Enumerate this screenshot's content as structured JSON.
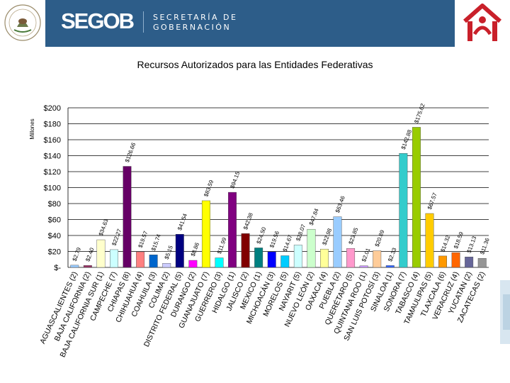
{
  "header": {
    "brand": "SEGOB",
    "line1": "SECRETARÍA DE",
    "line2": "GOBERNACIÓN",
    "colors": {
      "bar": "#2d5d89",
      "logo_red": "#c9202a"
    }
  },
  "chart_data": {
    "type": "bar",
    "title": "Recursos Autorizados para las Entidades Federativas",
    "ylabel": "Millones",
    "xlabel": "",
    "ylim": [
      0,
      200
    ],
    "yticks": [
      "$-",
      "$20",
      "$40",
      "$60",
      "$80",
      "$100",
      "$120",
      "$140",
      "$160",
      "$180",
      "$200"
    ],
    "grid": true,
    "categories": [
      "AGUASCALIENTES (2)",
      "BAJA CALIFORNIA (2)",
      "BAJA CALIFORNIA SUR (1)",
      "CAMPECHE (7)",
      "CHIAPAS (8)",
      "CHIHUAHUA (4)",
      "COAHUILA (3)",
      "COLIMA (2)",
      "DISTRITO FEDERAL (5)",
      "DURANGO (2)",
      "GUANAJUATO (7)",
      "GUERRERO (3)",
      "HIDALGO (1)",
      "JALISCO (2)",
      "MEXICO (1)",
      "MICHOACÁN (3)",
      "MORELOS (5)",
      "NAYARIT (5)",
      "NUEVO LEÓN (2)",
      "OAXACA (4)",
      "PUEBLA (2)",
      "QUERÉTARO (5)",
      "QUINTANA ROO (1)",
      "SAN LUIS POTOSÍ (3)",
      "SINALOA (1)",
      "SONORA (7)",
      "TABASCO (4)",
      "TAMAULIPAS (5)",
      "TLAXCALA (6)",
      "VERACRUZ (4)",
      "YUCATAN (2)",
      "ZACATECAS (2)"
    ],
    "values": [
      2.79,
      2.4,
      34.63,
      22.27,
      126.66,
      19.57,
      15.74,
      5.15,
      41.54,
      8.86,
      83.59,
      11.99,
      94.15,
      42.38,
      24.5,
      19.56,
      14.67,
      28.07,
      47.84,
      22.98,
      63.46,
      23.85,
      2.01,
      20.89,
      2.33,
      142.88,
      175.62,
      67.57,
      14.32,
      18.59,
      13.13,
      11.36
    ],
    "data_labels": [
      "$2.79",
      "$2.40",
      "$34.63",
      "$22.27",
      "$126.66",
      "$19.57",
      "$15.74",
      "$5.15",
      "$41.54",
      "$8.86",
      "$83.59",
      "$11.99",
      "$94.15",
      "$42.38",
      "$24.50",
      "$19.56",
      "$14.67",
      "$28.07",
      "$47.84",
      "$22.98",
      "$63.46",
      "$23.85",
      "$2.01",
      "$20.89",
      "$2.33",
      "$142.88",
      "$175.62",
      "$67.57",
      "$14.32",
      "$18.59",
      "$13.13",
      "$11.36"
    ],
    "colors": [
      "#99ccff",
      "#993366",
      "#ffffcc",
      "#ccffff",
      "#660066",
      "#ff8080",
      "#0066cc",
      "#ccccff",
      "#000080",
      "#ff00ff",
      "#ffff00",
      "#00ffff",
      "#800080",
      "#800000",
      "#008080",
      "#0000ff",
      "#00ccff",
      "#ccffff",
      "#ccffcc",
      "#ffff99",
      "#99ccff",
      "#ff99cc",
      "#cc99ff",
      "#ffcc99",
      "#3366ff",
      "#33cccc",
      "#99cc00",
      "#ffcc00",
      "#ff9900",
      "#ff6600",
      "#666699",
      "#969696"
    ]
  }
}
